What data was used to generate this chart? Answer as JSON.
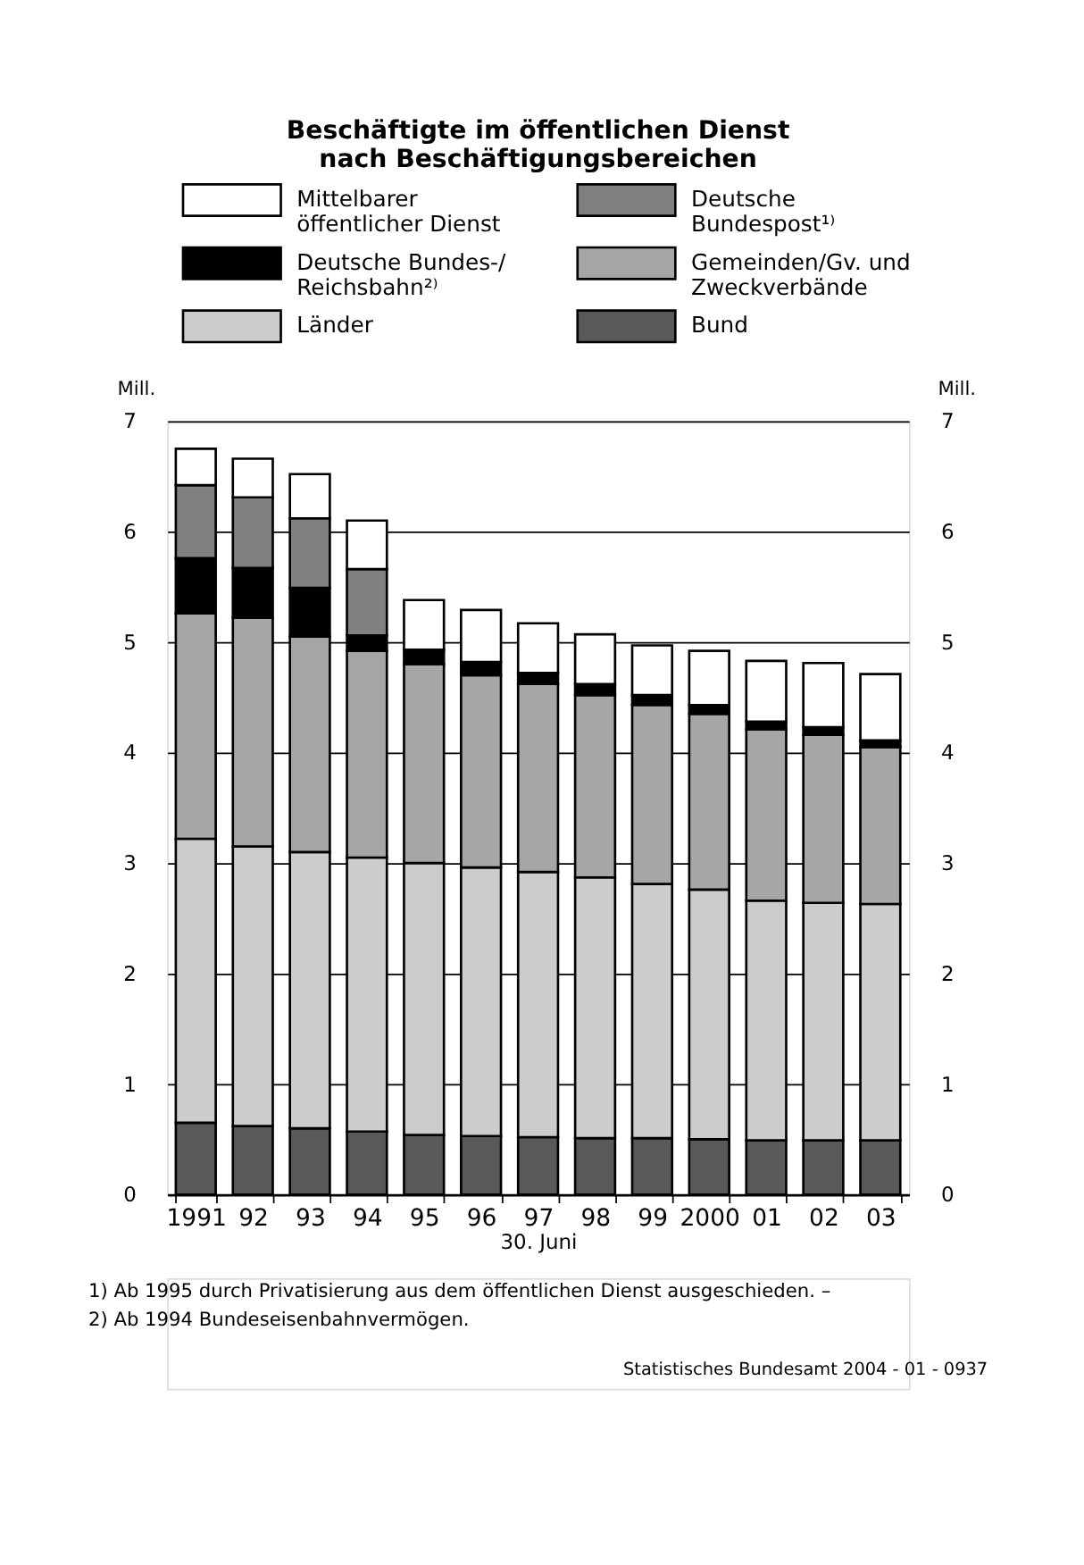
{
  "chart_data": {
    "type": "bar",
    "stacked": true,
    "title": [
      "Beschäftigte im öffentlichen Dienst",
      "nach Beschäftigungsbereichen"
    ],
    "xlabel": "30. Juni",
    "ylabel": "Mill.",
    "y2label": "Mill.",
    "categories": [
      "1991",
      "92",
      "93",
      "94",
      "95",
      "96",
      "97",
      "98",
      "99",
      "2000",
      "01",
      "02",
      "03"
    ],
    "series": [
      {
        "name": "Bund",
        "color": "#595959",
        "values": [
          0.65,
          0.62,
          0.6,
          0.57,
          0.54,
          0.53,
          0.52,
          0.51,
          0.51,
          0.5,
          0.49,
          0.49,
          0.49
        ]
      },
      {
        "name": "Länder",
        "color": "#cccccc",
        "values": [
          2.57,
          2.53,
          2.5,
          2.48,
          2.46,
          2.43,
          2.4,
          2.36,
          2.3,
          2.26,
          2.17,
          2.15,
          2.14
        ]
      },
      {
        "name": "Gemeinden/Gv. und Zweckverbände",
        "color": "#a6a6a6",
        "values": [
          2.04,
          2.07,
          1.95,
          1.87,
          1.8,
          1.74,
          1.7,
          1.65,
          1.62,
          1.59,
          1.55,
          1.52,
          1.42
        ]
      },
      {
        "name": "Deutsche Bundes-/Reichsbahn²⁾",
        "color": "#000000",
        "values": [
          0.5,
          0.45,
          0.44,
          0.14,
          0.13,
          0.12,
          0.1,
          0.1,
          0.09,
          0.08,
          0.07,
          0.07,
          0.06
        ]
      },
      {
        "name": "Deutsche Bundespost¹⁾",
        "color": "#808080",
        "values": [
          0.66,
          0.64,
          0.63,
          0.6,
          null,
          null,
          null,
          null,
          null,
          null,
          null,
          null,
          null
        ]
      },
      {
        "name": "Mittelbarer öffentlicher Dienst",
        "color": "#ffffff",
        "values": [
          0.33,
          0.35,
          0.4,
          0.44,
          0.45,
          0.47,
          0.45,
          0.45,
          0.45,
          0.49,
          0.55,
          0.58,
          0.6
        ]
      }
    ],
    "ylim": [
      0,
      7
    ],
    "yticks": [
      0,
      1,
      2,
      3,
      4,
      5,
      6,
      7
    ],
    "y2lim": [
      0,
      7
    ],
    "y2ticks": [
      0,
      1,
      2,
      3,
      4,
      5,
      6,
      7
    ],
    "grid": "y",
    "legend": "top",
    "annotations": [
      "1) Ab 1995 durch Privatisierung aus dem öffentlichen Dienst ausgeschieden. –",
      "2) Ab 1994 Bundeseisenbahnvermögen.",
      "Statistisches Bundesamt 2004 - 01 - 0937"
    ]
  }
}
